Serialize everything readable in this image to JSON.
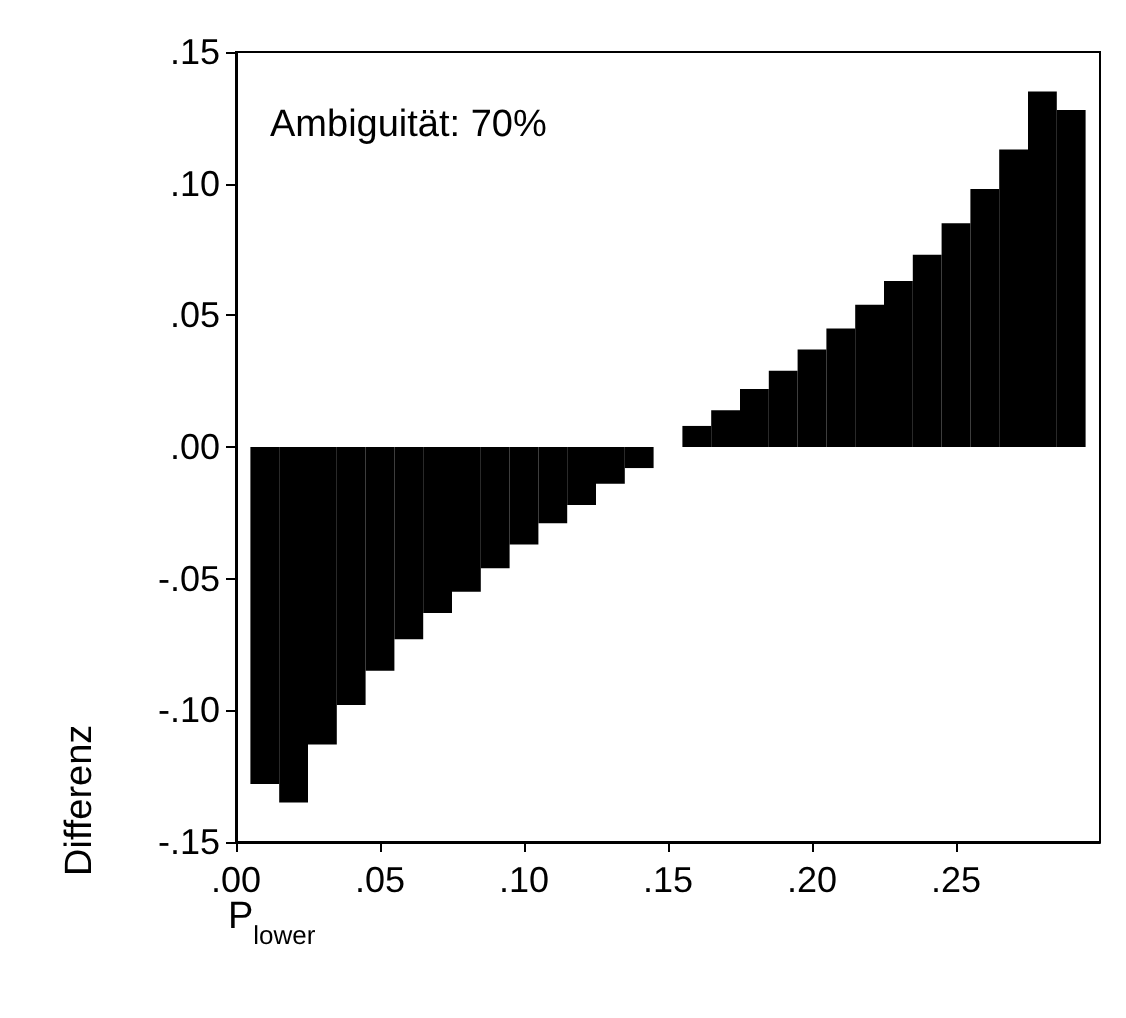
{
  "chart_data": {
    "type": "bar",
    "xlabel": "P$_{lower}$",
    "ylabel": "Differenz",
    "annotations": [
      "Ambiguität: 70%"
    ],
    "x": [
      0.01,
      0.02,
      0.03,
      0.04,
      0.05,
      0.06,
      0.07,
      0.08,
      0.09,
      0.1,
      0.11,
      0.12,
      0.13,
      0.14,
      0.15,
      0.16,
      0.17,
      0.18,
      0.19,
      0.2,
      0.21,
      0.22,
      0.23,
      0.24,
      0.25,
      0.26,
      0.27,
      0.28,
      0.29
    ],
    "series": [
      {
        "color": "#000000",
        "values": [
          -0.128,
          -0.135,
          -0.113,
          -0.098,
          -0.085,
          -0.073,
          -0.063,
          -0.055,
          -0.046,
          -0.037,
          -0.029,
          -0.022,
          -0.014,
          -0.008,
          null,
          0.008,
          0.014,
          0.022,
          0.029,
          0.037,
          0.045,
          0.054,
          0.063,
          0.073,
          0.085,
          0.098,
          0.113,
          0.135,
          0.128
        ]
      }
    ],
    "xlim": [
      0,
      0.3
    ],
    "xticks": [
      {
        "value": 0,
        "label": ".00"
      },
      {
        "value": 0.05,
        "label": ".05"
      },
      {
        "value": 0.1,
        "label": ".10"
      },
      {
        "value": 0.15,
        "label": ".15"
      },
      {
        "value": 0.2,
        "label": ".20"
      },
      {
        "value": 0.25,
        "label": ".25"
      }
    ],
    "ylim": [
      -0.15,
      0.15
    ],
    "yticks": [
      {
        "value": -0.15,
        "label": "-.15"
      },
      {
        "value": -0.1,
        "label": "-.10"
      },
      {
        "value": -0.05,
        "label": "-.05"
      },
      {
        "value": 0,
        "label": ".00"
      },
      {
        "value": 0.05,
        "label": ".05"
      },
      {
        "value": 0.1,
        "label": ".10"
      },
      {
        "value": 0.15,
        "label": ".15"
      }
    ],
    "orientation": "vertical"
  }
}
